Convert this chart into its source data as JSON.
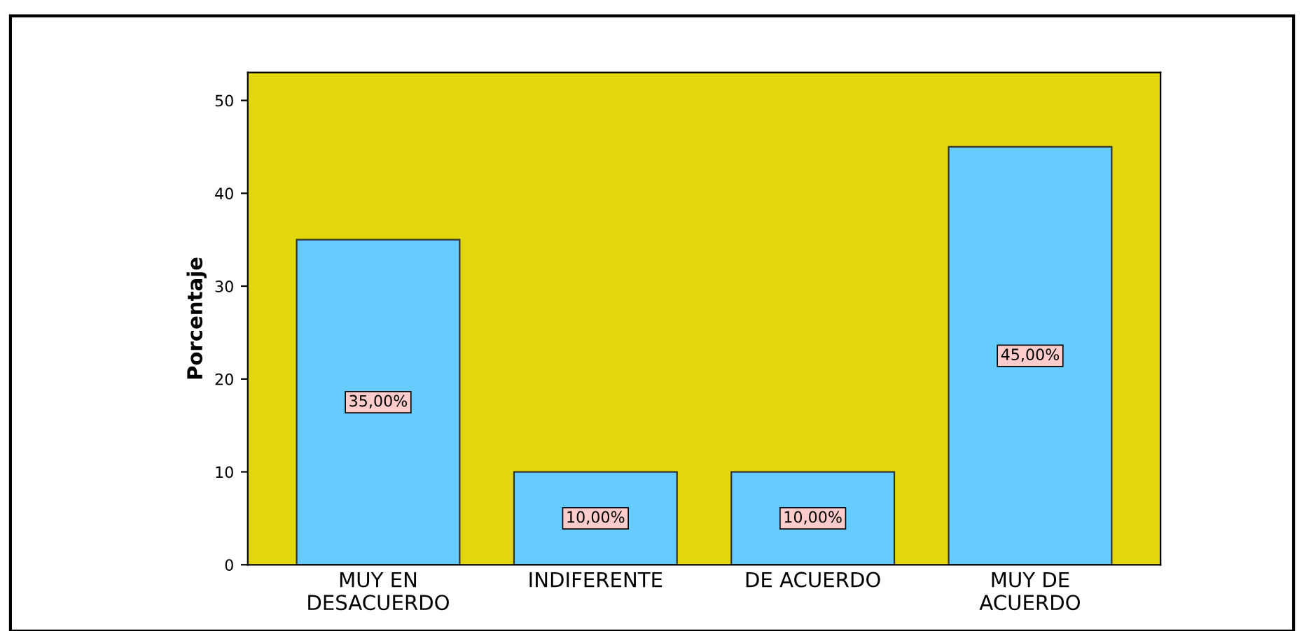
{
  "chart_data": {
    "type": "bar",
    "ylabel": "Porcentaje",
    "categories": [
      "MUY EN\nDESACUERDO",
      "INDIFERENTE",
      "DE ACUERDO",
      "MUY DE\nACUERDO"
    ],
    "values": [
      35,
      10,
      10,
      45
    ],
    "value_labels": [
      "35,00%",
      "10,00%",
      "10,00%",
      "45,00%"
    ],
    "color": "#66ccff",
    "ylim": [
      0,
      53
    ],
    "yticks": [
      0,
      10,
      20,
      30,
      40,
      50
    ],
    "grid": false,
    "legend": false
  }
}
